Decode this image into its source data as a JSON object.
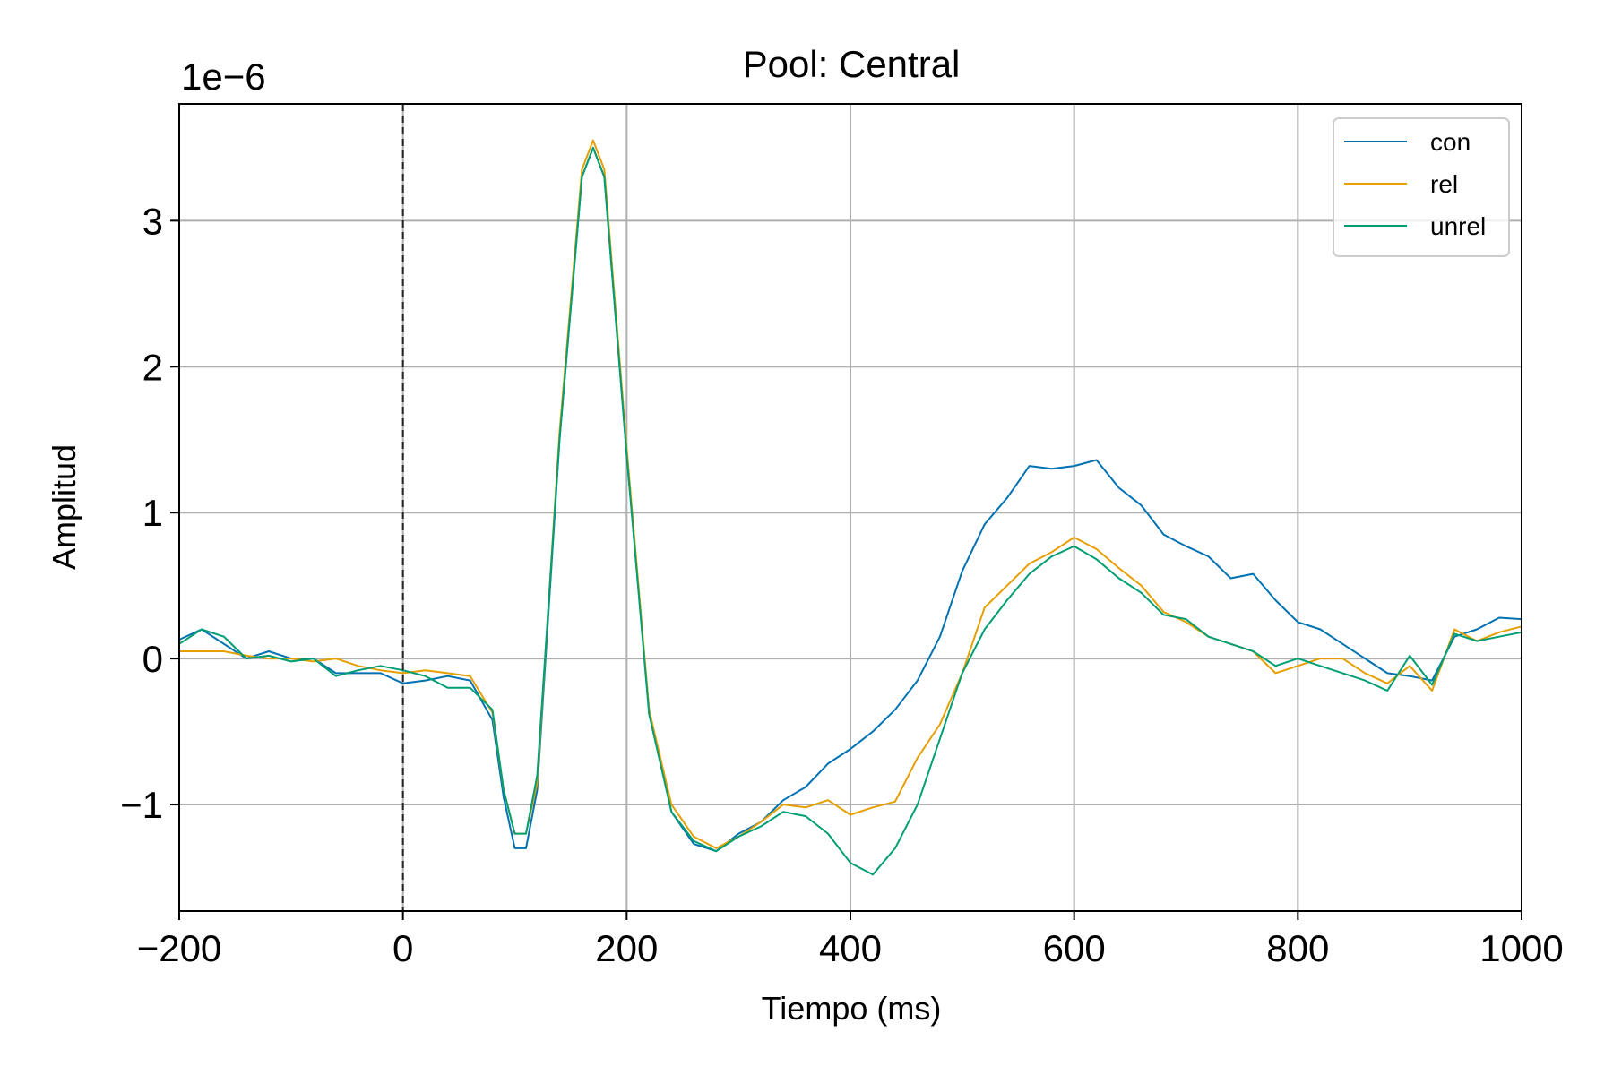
{
  "chart_data": {
    "type": "line",
    "title": "Pool: Central",
    "xlabel": "Tiempo (ms)",
    "ylabel": "Amplitud",
    "y_offset_label": "1e−6",
    "xlim": [
      -200,
      1000
    ],
    "ylim": [
      -1.73,
      3.8
    ],
    "xticks": [
      -200,
      0,
      200,
      400,
      600,
      800,
      1000
    ],
    "xtick_labels": [
      "−200",
      "0",
      "200",
      "400",
      "600",
      "800",
      "1000"
    ],
    "yticks": [
      -1,
      0,
      1,
      2,
      3
    ],
    "ytick_labels": [
      "−1",
      "0",
      "1",
      "2",
      "3"
    ],
    "grid": true,
    "legend_position": "top-right",
    "vline_x": 0,
    "x": [
      -200,
      -180,
      -160,
      -140,
      -120,
      -100,
      -80,
      -60,
      -40,
      -20,
      0,
      20,
      40,
      60,
      80,
      90,
      100,
      110,
      120,
      140,
      160,
      170,
      180,
      200,
      220,
      240,
      260,
      280,
      300,
      320,
      340,
      360,
      380,
      400,
      420,
      440,
      460,
      480,
      500,
      520,
      540,
      560,
      580,
      600,
      620,
      640,
      660,
      680,
      700,
      720,
      740,
      760,
      780,
      800,
      820,
      840,
      860,
      880,
      900,
      920,
      940,
      960,
      980,
      1000
    ],
    "series": [
      {
        "name": "con",
        "color": "#0072b2",
        "values": [
          0.13,
          0.2,
          0.1,
          0.0,
          0.05,
          0.0,
          0.0,
          -0.1,
          -0.1,
          -0.1,
          -0.17,
          -0.15,
          -0.12,
          -0.15,
          -0.42,
          -0.95,
          -1.3,
          -1.3,
          -0.9,
          1.5,
          3.3,
          3.5,
          3.3,
          1.4,
          -0.35,
          -1.05,
          -1.27,
          -1.32,
          -1.2,
          -1.12,
          -0.97,
          -0.88,
          -0.72,
          -0.62,
          -0.5,
          -0.35,
          -0.15,
          0.15,
          0.6,
          0.92,
          1.1,
          1.32,
          1.3,
          1.32,
          1.36,
          1.17,
          1.05,
          0.85,
          0.77,
          0.7,
          0.55,
          0.58,
          0.4,
          0.25,
          0.2,
          0.1,
          0.0,
          -0.1,
          -0.12,
          -0.15,
          0.15,
          0.2,
          0.28,
          0.27
        ]
      },
      {
        "name": "rel",
        "color": "#e69f00",
        "values": [
          0.05,
          0.05,
          0.05,
          0.02,
          0.0,
          0.0,
          -0.02,
          0.0,
          -0.05,
          -0.08,
          -0.1,
          -0.08,
          -0.1,
          -0.12,
          -0.37,
          -0.9,
          -1.2,
          -1.2,
          -0.85,
          1.55,
          3.35,
          3.55,
          3.35,
          1.45,
          -0.35,
          -1.0,
          -1.22,
          -1.3,
          -1.22,
          -1.12,
          -1.0,
          -1.02,
          -0.97,
          -1.07,
          -1.02,
          -0.98,
          -0.68,
          -0.45,
          -0.1,
          0.35,
          0.5,
          0.65,
          0.73,
          0.83,
          0.75,
          0.62,
          0.5,
          0.32,
          0.25,
          0.15,
          0.1,
          0.05,
          -0.1,
          -0.05,
          0.0,
          0.0,
          -0.1,
          -0.17,
          -0.05,
          -0.22,
          0.2,
          0.12,
          0.18,
          0.22
        ]
      },
      {
        "name": "unrel",
        "color": "#009e73",
        "values": [
          0.1,
          0.2,
          0.15,
          0.0,
          0.02,
          -0.02,
          0.0,
          -0.12,
          -0.08,
          -0.05,
          -0.08,
          -0.12,
          -0.2,
          -0.2,
          -0.35,
          -0.9,
          -1.2,
          -1.2,
          -0.8,
          1.5,
          3.3,
          3.5,
          3.3,
          1.4,
          -0.38,
          -1.05,
          -1.25,
          -1.32,
          -1.22,
          -1.15,
          -1.05,
          -1.08,
          -1.2,
          -1.4,
          -1.48,
          -1.3,
          -1.0,
          -0.55,
          -0.1,
          0.2,
          0.4,
          0.58,
          0.7,
          0.77,
          0.68,
          0.55,
          0.45,
          0.3,
          0.27,
          0.15,
          0.1,
          0.05,
          -0.05,
          0.0,
          -0.05,
          -0.1,
          -0.15,
          -0.22,
          0.02,
          -0.18,
          0.17,
          0.12,
          0.15,
          0.18
        ]
      }
    ]
  }
}
